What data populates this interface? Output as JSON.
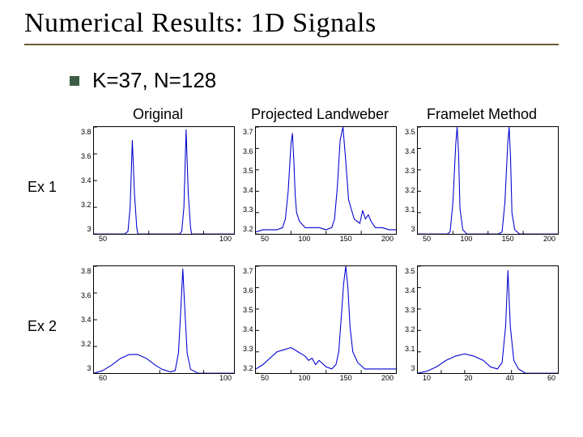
{
  "title": "Numerical Results: 1D Signals",
  "title_rule_color": "#6a5d36",
  "bullet_color": "#3b5b42",
  "bullet_text": "K=37, N=128",
  "headers": {
    "c1": "Original",
    "c2": "Projected Landweber",
    "c3": "Framelet Method"
  },
  "rows": {
    "r1": "Ex 1",
    "r2": "Ex 2"
  },
  "global": {
    "axis_color": "#000000",
    "line_color": "#0000d0",
    "line_width": 1.1,
    "bg": "#ffffff",
    "tick_font": 9
  },
  "p11": {
    "type": "line",
    "xlim": [
      0,
      128
    ],
    "ylim": [
      3.0,
      3.8
    ],
    "xticks": [
      50,
      100
    ],
    "xticklabels": [
      "50",
      "100"
    ],
    "yticks": [
      3.0,
      3.2,
      3.4,
      3.6,
      3.8
    ],
    "yticklabels": [
      "3",
      "3.2",
      "3.4",
      "3.6",
      "3.8"
    ],
    "x": [
      0,
      10,
      20,
      28,
      31,
      33,
      35,
      37,
      39,
      40,
      50,
      60,
      70,
      78,
      80,
      82,
      84,
      86,
      88,
      89,
      90,
      100,
      110,
      120,
      128
    ],
    "y": [
      3.0,
      3.0,
      3.0,
      3.0,
      3.02,
      3.2,
      3.7,
      3.3,
      3.05,
      3.0,
      3.0,
      3.0,
      3.0,
      3.0,
      3.02,
      3.2,
      3.78,
      3.3,
      3.05,
      3.0,
      3.0,
      3.0,
      3.0,
      3.0,
      3.0
    ]
  },
  "p12": {
    "type": "line",
    "xlim": [
      0,
      200
    ],
    "ylim": [
      3.2,
      3.7
    ],
    "xticks": [
      50,
      100,
      150,
      200
    ],
    "xticklabels": [
      "50",
      "100",
      "150",
      "200"
    ],
    "yticks": [
      3.2,
      3.3,
      3.4,
      3.5,
      3.6,
      3.7
    ],
    "yticklabels": [
      "3.2",
      "3.3",
      "3.4",
      "3.5",
      "3.6",
      "3.7"
    ],
    "x": [
      0,
      10,
      20,
      30,
      38,
      42,
      46,
      50,
      52,
      54,
      56,
      58,
      62,
      70,
      80,
      90,
      100,
      108,
      112,
      116,
      120,
      124,
      128,
      132,
      140,
      148,
      152,
      156,
      160,
      164,
      170,
      180,
      190,
      200
    ],
    "y": [
      3.21,
      3.22,
      3.22,
      3.22,
      3.23,
      3.27,
      3.4,
      3.62,
      3.67,
      3.55,
      3.38,
      3.3,
      3.26,
      3.23,
      3.23,
      3.23,
      3.22,
      3.23,
      3.27,
      3.42,
      3.64,
      3.7,
      3.54,
      3.36,
      3.27,
      3.25,
      3.31,
      3.27,
      3.29,
      3.26,
      3.23,
      3.23,
      3.22,
      3.22
    ]
  },
  "p13": {
    "type": "line",
    "xlim": [
      0,
      200
    ],
    "ylim": [
      3.0,
      3.5
    ],
    "xticks": [
      50,
      100,
      150,
      200
    ],
    "xticklabels": [
      "50",
      "100",
      "150",
      "200"
    ],
    "yticks": [
      3.0,
      3.1,
      3.2,
      3.3,
      3.4,
      3.5
    ],
    "yticklabels": [
      "3",
      "3.1",
      "3.2",
      "3.3",
      "3.4",
      "3.5"
    ],
    "x": [
      0,
      20,
      35,
      42,
      46,
      50,
      54,
      56,
      58,
      60,
      64,
      70,
      85,
      100,
      114,
      120,
      124,
      128,
      130,
      132,
      134,
      138,
      145,
      160,
      180,
      200
    ],
    "y": [
      3.0,
      3.0,
      3.0,
      3.0,
      3.01,
      3.15,
      3.42,
      3.5,
      3.38,
      3.12,
      3.02,
      3.0,
      3.0,
      3.0,
      3.0,
      3.01,
      3.15,
      3.42,
      3.5,
      3.36,
      3.1,
      3.02,
      3.0,
      3.0,
      3.0,
      3.0
    ]
  },
  "p21": {
    "type": "line",
    "xlim": [
      0,
      128
    ],
    "ylim": [
      3.0,
      3.8
    ],
    "xticks": [
      60,
      100
    ],
    "xticklabels": [
      "60",
      "100"
    ],
    "yticks": [
      3.0,
      3.2,
      3.4,
      3.6,
      3.8
    ],
    "yticklabels": [
      "3",
      "3.2",
      "3.4",
      "3.6",
      "3.8"
    ],
    "x": [
      0,
      8,
      16,
      24,
      32,
      40,
      48,
      56,
      62,
      70,
      74,
      77,
      79,
      81,
      83,
      85,
      88,
      95,
      105,
      115,
      128
    ],
    "y": [
      3.0,
      3.02,
      3.06,
      3.11,
      3.14,
      3.14,
      3.11,
      3.06,
      3.03,
      3.01,
      3.02,
      3.15,
      3.45,
      3.78,
      3.45,
      3.15,
      3.03,
      3.0,
      3.0,
      3.0,
      3.0
    ]
  },
  "p22": {
    "type": "line",
    "xlim": [
      0,
      200
    ],
    "ylim": [
      3.2,
      3.7
    ],
    "xticks": [
      50,
      100,
      150,
      200
    ],
    "xticklabels": [
      "50",
      "100",
      "150",
      "200"
    ],
    "yticks": [
      3.2,
      3.3,
      3.4,
      3.5,
      3.6,
      3.7
    ],
    "yticklabels": [
      "3.2",
      "3.3",
      "3.4",
      "3.5",
      "3.6",
      "3.7"
    ],
    "x": [
      0,
      10,
      20,
      30,
      40,
      50,
      60,
      70,
      75,
      80,
      85,
      90,
      100,
      108,
      114,
      118,
      122,
      125,
      128,
      131,
      134,
      138,
      145,
      155,
      165,
      175,
      185,
      195,
      200
    ],
    "y": [
      3.22,
      3.24,
      3.27,
      3.3,
      3.31,
      3.32,
      3.3,
      3.28,
      3.26,
      3.27,
      3.24,
      3.26,
      3.23,
      3.22,
      3.24,
      3.3,
      3.48,
      3.62,
      3.7,
      3.6,
      3.42,
      3.3,
      3.25,
      3.22,
      3.22,
      3.22,
      3.22,
      3.22,
      3.22
    ]
  },
  "p23": {
    "type": "line",
    "xlim": [
      0,
      60
    ],
    "ylim": [
      3.0,
      3.5
    ],
    "xticks": [
      10,
      20,
      40,
      60
    ],
    "xticklabels": [
      "10",
      "20",
      "40",
      "60"
    ],
    "yticks": [
      3.0,
      3.1,
      3.2,
      3.3,
      3.4,
      3.5
    ],
    "yticklabels": [
      "3",
      "3.1",
      "3.2",
      "3.3",
      "3.4",
      "3.5"
    ],
    "x": [
      0,
      4,
      8,
      12,
      16,
      20,
      24,
      28,
      31,
      34,
      36,
      37.5,
      38.5,
      39.5,
      41,
      43,
      46,
      50,
      55,
      60
    ],
    "y": [
      3.0,
      3.01,
      3.03,
      3.06,
      3.08,
      3.09,
      3.08,
      3.06,
      3.03,
      3.02,
      3.05,
      3.22,
      3.48,
      3.22,
      3.06,
      3.02,
      3.0,
      3.0,
      3.0,
      3.0
    ]
  }
}
